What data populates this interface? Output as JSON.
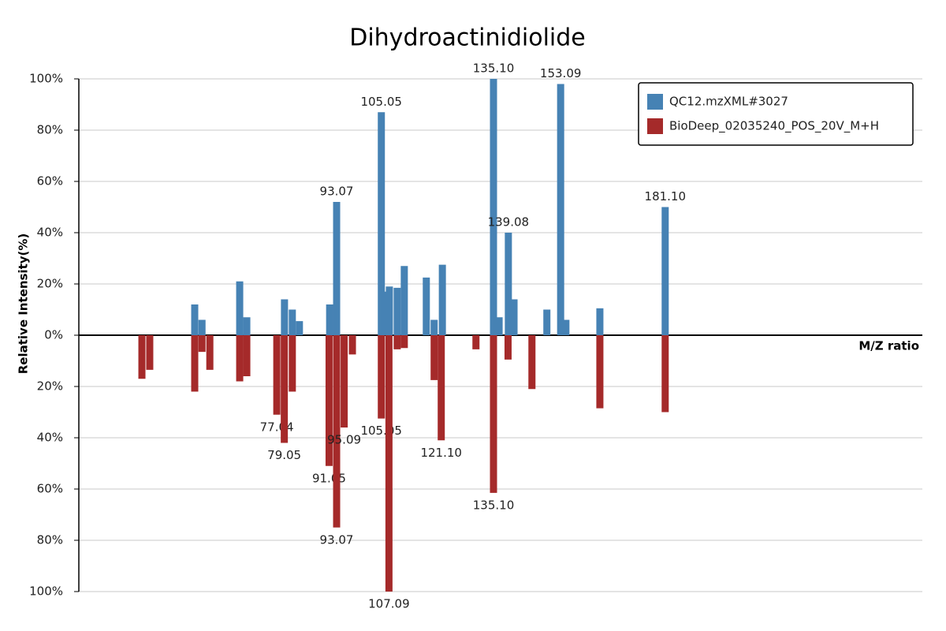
{
  "chart_data": {
    "type": "mirror_bar",
    "title": "Dihydroactinidiolide",
    "y_label": "Relative Intensity(%)",
    "x_label": "M/Z ratio",
    "xlim": [
      24,
      250
    ],
    "ylim": [
      -100,
      100
    ],
    "yticks": [
      {
        "value": -100,
        "label": "100%"
      },
      {
        "value": -80,
        "label": "80%"
      },
      {
        "value": -60,
        "label": "60%"
      },
      {
        "value": -40,
        "label": "40%"
      },
      {
        "value": -20,
        "label": "20%"
      },
      {
        "value": 0,
        "label": "0%"
      },
      {
        "value": 20,
        "label": "20%"
      },
      {
        "value": 40,
        "label": "40%"
      },
      {
        "value": 60,
        "label": "60%"
      },
      {
        "value": 80,
        "label": "80%"
      },
      {
        "value": 100,
        "label": "100%"
      }
    ],
    "grid": true,
    "legend": "top-right",
    "series": [
      {
        "name": "QC12.mzXML#3027",
        "color": "#4682b4",
        "x": [
          55.05,
          57.0,
          67.1,
          69.0,
          79.1,
          81.2,
          83.1,
          91.2,
          93.07,
          105.05,
          106.1,
          107.2,
          109.3,
          111.2,
          117.1,
          119.2,
          121.4,
          135.1,
          136.6,
          139.08,
          140.6,
          149.4,
          153.09,
          154.5,
          163.6,
          181.1
        ],
        "values": [
          12,
          6,
          21,
          7,
          14,
          10,
          5.5,
          12,
          52,
          87,
          17,
          19,
          18.5,
          27,
          22.5,
          6,
          27.5,
          100,
          7,
          40,
          14,
          10,
          98,
          6,
          10.5,
          50
        ],
        "peak_labels": [
          null,
          null,
          null,
          null,
          null,
          null,
          null,
          null,
          "93.07",
          "105.05",
          null,
          null,
          null,
          null,
          null,
          null,
          null,
          "135.10",
          null,
          "139.08",
          null,
          null,
          "153.09",
          null,
          null,
          "181.10"
        ]
      },
      {
        "name": "BioDeep_02035240_POS_20V_M+H",
        "color": "#a52a2a",
        "x": [
          40.9,
          43.0,
          55.05,
          57.0,
          59.1,
          67.1,
          69.0,
          77.04,
          79.05,
          81.2,
          91.05,
          93.07,
          95.09,
          97.3,
          105.05,
          107.09,
          109.3,
          111.2,
          119.2,
          121.1,
          130.4,
          135.1,
          139.0,
          145.4,
          163.6,
          181.1
        ],
        "values": [
          -17,
          -13.5,
          -22,
          -6.5,
          -13.5,
          -18,
          -16,
          -31,
          -42,
          -22,
          -51,
          -75,
          -36,
          -7.5,
          -32.5,
          -100,
          -5.5,
          -5,
          -17.5,
          -41,
          -5.5,
          -61.5,
          -9.5,
          -21,
          -28.5,
          -30
        ],
        "peak_labels": [
          null,
          null,
          null,
          null,
          null,
          null,
          null,
          "77.04",
          "79.05",
          null,
          "91.05",
          "93.07",
          "95.09",
          null,
          "105.05",
          "107.09",
          null,
          null,
          null,
          "121.10",
          null,
          "135.10",
          null,
          null,
          null,
          null
        ]
      }
    ]
  }
}
